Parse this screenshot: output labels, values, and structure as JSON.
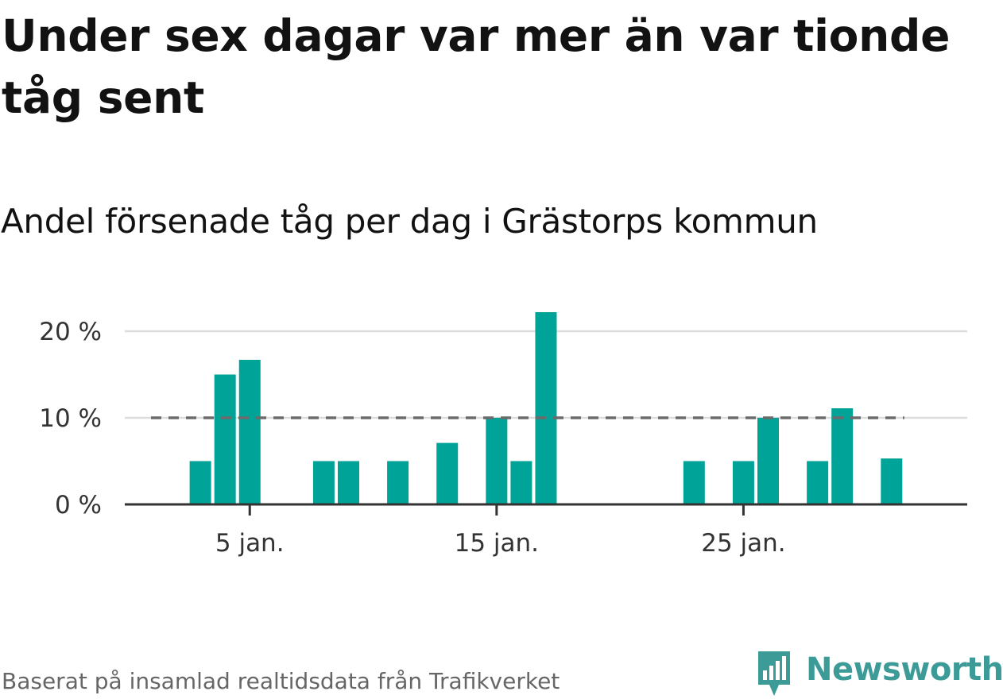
{
  "title": "Under sex dagar var mer än var tionde tåg sent",
  "subtitle": "Andel försenade tåg per dag i Grästorps kommun",
  "footer": {
    "source": "Baserat på insamlad realtidsdata från Trafikverket",
    "brand": "Newsworthy"
  },
  "colors": {
    "bar": "#00a398",
    "reference_line": "#6b6b6b",
    "grid": "#dcdcdc",
    "axis": "#333333",
    "brand": "#3c9b97"
  },
  "chart_data": {
    "type": "bar",
    "x_unit": "day of January",
    "x": [
      1,
      2,
      3,
      4,
      5,
      6,
      7,
      8,
      9,
      10,
      11,
      12,
      13,
      14,
      15,
      16,
      17,
      18,
      19,
      20,
      21,
      22,
      23,
      24,
      25,
      26,
      27,
      28,
      29,
      30,
      31
    ],
    "values": [
      0,
      0,
      5,
      15,
      16.7,
      0,
      0,
      5,
      5,
      0,
      5,
      0,
      7.1,
      0,
      10,
      5,
      22.2,
      0,
      0,
      0,
      0,
      0,
      5,
      0,
      5,
      10,
      0,
      5,
      11.1,
      0,
      5.3
    ],
    "reference_line": {
      "value": 10,
      "style": "dashed"
    },
    "x_ticks": [
      {
        "x": 5,
        "label": "5 jan."
      },
      {
        "x": 15,
        "label": "15 jan."
      },
      {
        "x": 25,
        "label": "25 jan."
      }
    ],
    "y_ticks": [
      {
        "value": 0,
        "label": "0 %"
      },
      {
        "value": 10,
        "label": "10 %"
      },
      {
        "value": 20,
        "label": "20 %"
      }
    ],
    "ylim": [
      0,
      22.2
    ],
    "grid": true,
    "legend": "none"
  }
}
